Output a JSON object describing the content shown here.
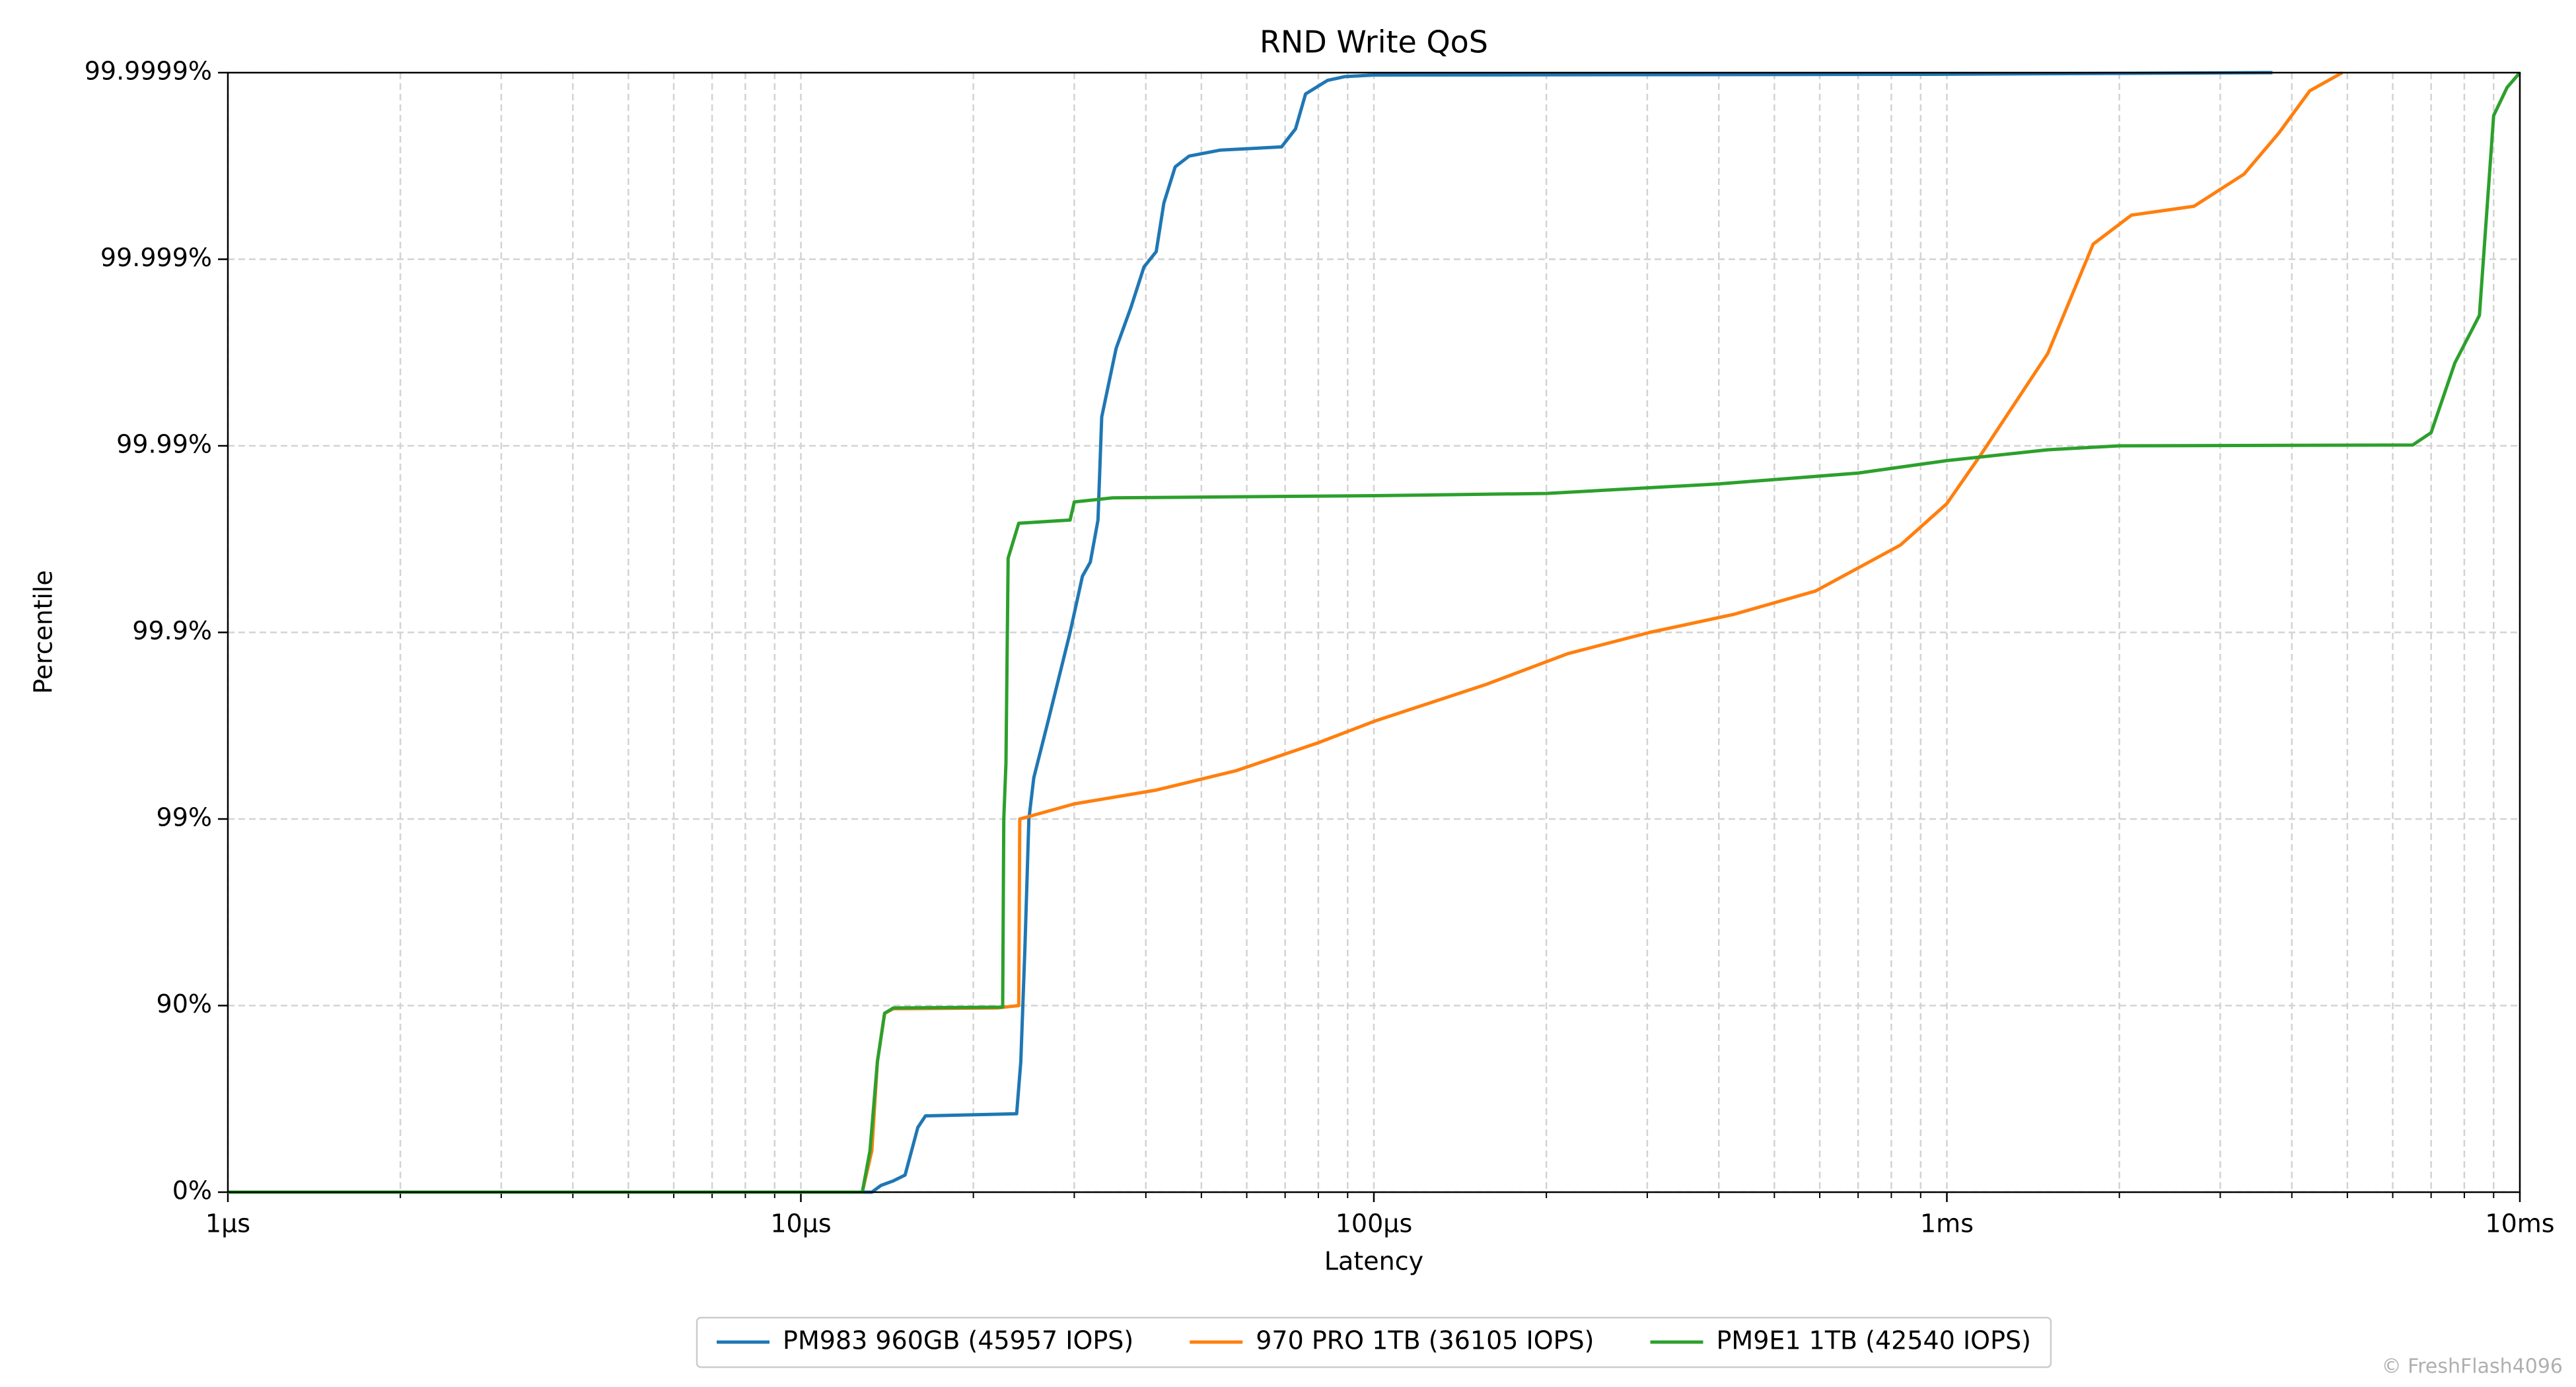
{
  "chart_data": {
    "type": "line",
    "title": "RND Write QoS",
    "x_label": "Latency",
    "y_label": "Percentile",
    "xscale": "log",
    "yscale": "nines",
    "grid": true,
    "legend": "bottom",
    "watermark": "© FreshFlash4096",
    "xlim": [
      1,
      10000
    ],
    "xticks": [
      {
        "value": 1,
        "label": "1µs"
      },
      {
        "value": 10,
        "label": "10µs"
      },
      {
        "value": 100,
        "label": "100µs"
      },
      {
        "value": 1000,
        "label": "1ms"
      },
      {
        "value": 10000,
        "label": "10ms"
      }
    ],
    "ylim": [
      0,
      99.9999
    ],
    "yticks": [
      {
        "value": 0,
        "label": "0%"
      },
      {
        "value": 90,
        "label": "90%"
      },
      {
        "value": 99,
        "label": "99%"
      },
      {
        "value": 99.9,
        "label": "99.9%"
      },
      {
        "value": 99.99,
        "label": "99.99%"
      },
      {
        "value": 99.999,
        "label": "99.999%"
      },
      {
        "value": 99.9999,
        "label": "99.9999%"
      }
    ],
    "series": [
      {
        "name": "PM983 960GB (45957 IOPS)",
        "color": "#1f77b4",
        "x": [
          1,
          13.3,
          13.8,
          14.5,
          15.2,
          16,
          16.5,
          23.8,
          24.2,
          24.6,
          25,
          25.5,
          27,
          29.5,
          31,
          32,
          33,
          33.5,
          35.5,
          37.7,
          39.7,
          41.7,
          43,
          45,
          47.6,
          54,
          69,
          73,
          76,
          83,
          89,
          100,
          1000,
          3700
        ],
        "values": [
          0,
          0,
          8,
          13,
          19,
          55,
          61,
          62,
          80,
          95,
          99,
          99.4,
          99.7,
          99.9,
          99.95,
          99.958,
          99.975,
          99.993,
          99.997,
          99.9982,
          99.9989,
          99.99909,
          99.9995,
          99.99968,
          99.99972,
          99.99974,
          99.99975,
          99.9998,
          99.99987,
          99.99989,
          99.999895,
          99.999897,
          99.999898,
          99.9999
        ]
      },
      {
        "name": "970 PRO 1TB (36105 IOPS)",
        "color": "#ff7f0e",
        "x": [
          1,
          12.8,
          13.3,
          13.6,
          14,
          14.5,
          22,
          24,
          24.1,
          25,
          30,
          41.7,
          57.6,
          80,
          100,
          157,
          218,
          303,
          425,
          590,
          830,
          1000,
          1150,
          1500,
          1800,
          2100,
          2700,
          3300,
          3800,
          4300,
          4900
        ],
        "values": [
          0,
          0,
          40,
          80,
          89,
          89.6,
          89.7,
          90,
          99,
          99.03,
          99.17,
          99.3,
          99.45,
          99.61,
          99.7,
          99.81,
          99.87,
          99.9,
          99.92,
          99.94,
          99.966,
          99.9796,
          99.989,
          99.9968,
          99.99917,
          99.99942,
          99.99948,
          99.99965,
          99.99979,
          99.999875,
          99.9999
        ]
      },
      {
        "name": "PM9E1 1TB (42540 IOPS)",
        "color": "#2ca02c",
        "x": [
          1,
          12.8,
          13.2,
          13.6,
          14,
          14.5,
          22.5,
          22.6,
          22.8,
          23,
          24,
          29.5,
          30,
          35,
          100,
          200,
          400,
          700,
          1000,
          1500,
          2000,
          6500,
          7000,
          7700,
          8500,
          9000,
          9500,
          10000
        ],
        "values": [
          0,
          0,
          40,
          80,
          89,
          89.7,
          89.8,
          99,
          99.5,
          99.96,
          99.974,
          99.975,
          99.98,
          99.981,
          99.9815,
          99.982,
          99.984,
          99.986,
          99.988,
          99.9895,
          99.99,
          99.9901,
          99.9915,
          99.9964,
          99.998,
          99.99983,
          99.99988,
          99.9999
        ]
      }
    ]
  }
}
